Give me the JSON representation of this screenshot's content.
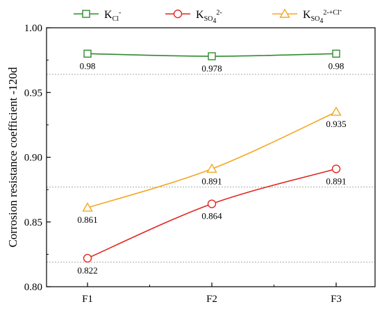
{
  "chart_data": {
    "type": "line",
    "title": "",
    "xlabel": "",
    "ylabel": "Corrosion resistance coefficient -120d",
    "categories": [
      "F1",
      "F2",
      "F3"
    ],
    "ylim": [
      0.8,
      1.0
    ],
    "yticks": [
      "0.80",
      "0.85",
      "0.90",
      "0.95",
      "1.00"
    ],
    "grid": "none; dotted horizontal reference lines",
    "legend_position": "top",
    "series": [
      {
        "name": "K_Cl-",
        "legend_main": "K",
        "legend_sub": "Cl",
        "legend_sup": "-",
        "legend_tail": "",
        "legend_tail_sup": "",
        "color": "#2e8b2e",
        "marker": "square",
        "values": [
          0.98,
          0.978,
          0.98
        ],
        "labels": [
          "0.98",
          "0.978",
          "0.98"
        ]
      },
      {
        "name": "K_SO4 2-",
        "legend_main": "K",
        "legend_sub": "SO",
        "legend_sub2": "4",
        "legend_sup": "2-",
        "legend_tail": "",
        "legend_tail_sup": "",
        "color": "#e0261d",
        "marker": "circle",
        "values": [
          0.822,
          0.864,
          0.891
        ],
        "labels": [
          "0.822",
          "0.864",
          "0.891"
        ]
      },
      {
        "name": "K_SO4 2- + Cl-",
        "legend_main": "K",
        "legend_sub": "SO",
        "legend_sub2": "4",
        "legend_sup": "2-",
        "legend_tail": "+Cl",
        "legend_tail_sup": "-",
        "color": "#f5a623",
        "marker": "triangle",
        "values": [
          0.861,
          0.891,
          0.935
        ],
        "labels": [
          "0.861",
          "0.891",
          "0.935"
        ]
      }
    ],
    "reference_lines": [
      0.964,
      0.877,
      0.819
    ]
  }
}
